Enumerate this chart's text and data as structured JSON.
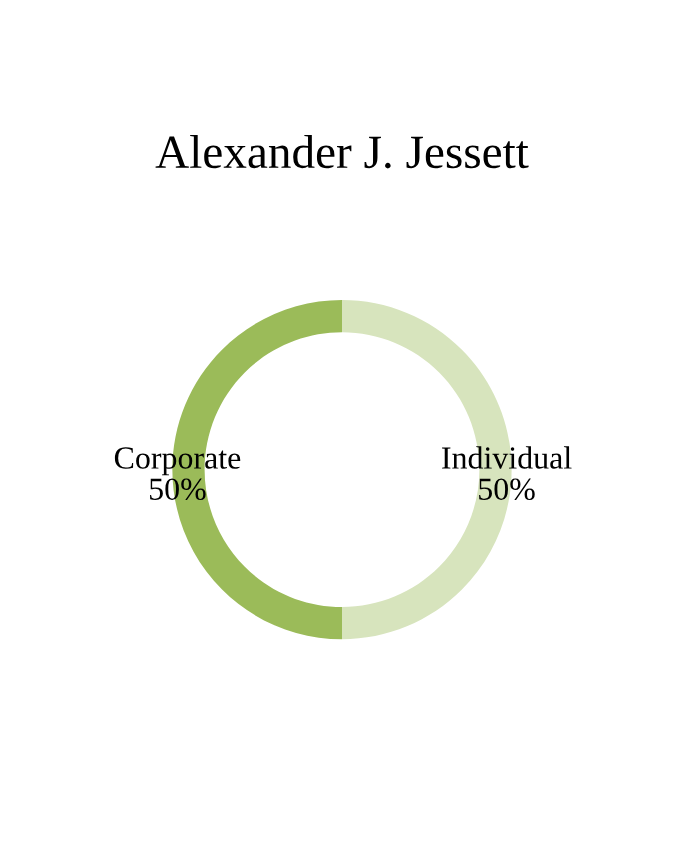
{
  "chart_data": {
    "type": "donut",
    "title": "Alexander J. Jessett",
    "categories": [
      "Individual",
      "Corporate"
    ],
    "values": [
      50,
      50
    ],
    "value_labels": [
      "50%",
      "50%"
    ],
    "colors": [
      "#d7e4bd",
      "#9bbb59"
    ],
    "legend": false
  }
}
